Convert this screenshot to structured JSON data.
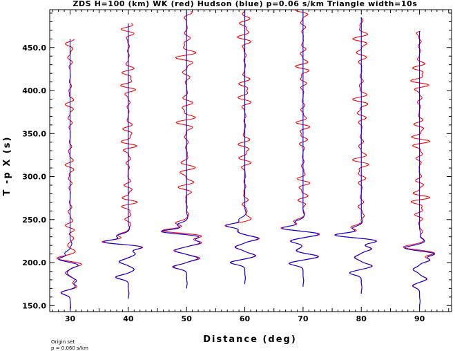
{
  "chart_data": {
    "type": "line",
    "title": "ZDS H=100 (km) WK (red) Hudson (blue) p=0.06 s/km Triangle width=10s",
    "xlabel": "Distance (deg)",
    "ylabel": "T -p X (s)",
    "xlim": [
      26.5,
      95.5
    ],
    "ylim": [
      143,
      494
    ],
    "x_ticks": [
      {
        "value": 30,
        "label": "30"
      },
      {
        "value": 40,
        "label": "40"
      },
      {
        "value": 50,
        "label": "50"
      },
      {
        "value": 60,
        "label": "60"
      },
      {
        "value": 70,
        "label": "70"
      },
      {
        "value": 80,
        "label": "80"
      },
      {
        "value": 90,
        "label": "90"
      }
    ],
    "y_ticks": [
      {
        "value": 150,
        "label": "150.0"
      },
      {
        "value": 200,
        "label": "200.0"
      },
      {
        "value": 250,
        "label": "250.0"
      },
      {
        "value": 300,
        "label": "300.0"
      },
      {
        "value": 350,
        "label": "350.0"
      },
      {
        "value": 400,
        "label": "400.0"
      },
      {
        "value": 450,
        "label": "450.0"
      }
    ],
    "series": [
      {
        "name": "WK",
        "color": "#ff0000"
      },
      {
        "name": "Hudson",
        "color": "#0000ff"
      }
    ],
    "traces": [
      {
        "distance": 30,
        "t_start": 143,
        "t_end": 460,
        "coda_start": 210,
        "coda_amp": 0.7,
        "coda_period": 14,
        "blue": [
          [
            150,
            0.1
          ],
          [
            165,
            -1.6
          ],
          [
            172,
            0.9
          ],
          [
            179,
            1.1
          ],
          [
            188,
            -0.8
          ],
          [
            197,
            1.4
          ],
          [
            204,
            -2.0
          ],
          [
            211,
            -0.9
          ],
          [
            222,
            0.3
          ]
        ],
        "red": [
          [
            150,
            0.1
          ],
          [
            165,
            -1.5
          ],
          [
            172,
            1.2
          ],
          [
            180,
            0.8
          ],
          [
            188,
            -0.5
          ],
          [
            198,
            2.0
          ],
          [
            205,
            -2.3
          ],
          [
            213,
            0.9
          ],
          [
            221,
            -0.6
          ],
          [
            228,
            0.8
          ]
        ]
      },
      {
        "distance": 40,
        "t_start": 158,
        "t_end": 478,
        "coda_start": 232,
        "coda_amp": 1.3,
        "coda_period": 13,
        "blue": [
          [
            164,
            0.1
          ],
          [
            183,
            -2.2
          ],
          [
            192,
            1.0
          ],
          [
            201,
            -1.6
          ],
          [
            210,
            1.2
          ],
          [
            218,
            2.4
          ],
          [
            224,
            -4.3
          ],
          [
            231,
            -2.0
          ],
          [
            240,
            0.2
          ]
        ],
        "red": [
          [
            164,
            0.1
          ],
          [
            183,
            -2.1
          ],
          [
            192,
            1.0
          ],
          [
            201,
            -1.5
          ],
          [
            210,
            1.2
          ],
          [
            218,
            2.6
          ],
          [
            224,
            -4.6
          ],
          [
            232,
            -1.8
          ],
          [
            242,
            0.3
          ]
        ]
      },
      {
        "distance": 50,
        "t_start": 170,
        "t_end": 492,
        "coda_start": 255,
        "coda_amp": 1.6,
        "coda_period": 15,
        "blue": [
          [
            176,
            0.1
          ],
          [
            195,
            -2.4
          ],
          [
            205,
            2.0
          ],
          [
            214,
            -2.0
          ],
          [
            223,
            2.3
          ],
          [
            230,
            2.2
          ],
          [
            236,
            -4.4
          ],
          [
            244,
            -1.6
          ],
          [
            253,
            0.2
          ]
        ],
        "red": [
          [
            176,
            0.1
          ],
          [
            195,
            -2.2
          ],
          [
            205,
            2.3
          ],
          [
            214,
            -2.2
          ],
          [
            223,
            2.6
          ],
          [
            231,
            2.7
          ],
          [
            237,
            -4.3
          ],
          [
            246,
            -1.9
          ],
          [
            256,
            0.4
          ]
        ]
      },
      {
        "distance": 60,
        "t_start": 175,
        "t_end": 494,
        "coda_start": 262,
        "coda_amp": 1.2,
        "coda_period": 14,
        "blue": [
          [
            182,
            0.1
          ],
          [
            200,
            -2.5
          ],
          [
            208,
            1.8
          ],
          [
            218,
            -1.6
          ],
          [
            228,
            2.3
          ],
          [
            236,
            -1.2
          ],
          [
            243,
            -3.2
          ],
          [
            250,
            -1.0
          ],
          [
            258,
            0.2
          ]
        ],
        "red": [
          [
            182,
            0.1
          ],
          [
            200,
            -2.4
          ],
          [
            208,
            1.9
          ],
          [
            218,
            -1.7
          ],
          [
            228,
            2.5
          ],
          [
            236,
            -1.1
          ],
          [
            243,
            -3.4
          ],
          [
            251,
            1.1
          ],
          [
            260,
            0.4
          ]
        ]
      },
      {
        "distance": 70,
        "t_start": 172,
        "t_end": 494,
        "coda_start": 253,
        "coda_amp": 1.1,
        "coda_period": 13,
        "blue": [
          [
            179,
            0.1
          ],
          [
            199,
            -2.4
          ],
          [
            207,
            2.6
          ],
          [
            214,
            -1.2
          ],
          [
            225,
            -2.1
          ],
          [
            233,
            2.7
          ],
          [
            240,
            -3.6
          ],
          [
            247,
            -1.4
          ],
          [
            255,
            0.2
          ]
        ],
        "red": [
          [
            179,
            0.1
          ],
          [
            199,
            -2.3
          ],
          [
            207,
            2.7
          ],
          [
            214,
            -1.1
          ],
          [
            225,
            -2.2
          ],
          [
            233,
            2.9
          ],
          [
            240,
            -3.8
          ],
          [
            248,
            -1.6
          ],
          [
            257,
            0.3
          ]
        ]
      },
      {
        "distance": 80,
        "t_start": 164,
        "t_end": 485,
        "coda_start": 245,
        "coda_amp": 1.3,
        "coda_period": 14,
        "blue": [
          [
            171,
            0.1
          ],
          [
            188,
            -2.0
          ],
          [
            196,
            1.8
          ],
          [
            206,
            -1.1
          ],
          [
            216,
            1.7
          ],
          [
            225,
            2.6
          ],
          [
            232,
            -4.5
          ],
          [
            240,
            -1.5
          ],
          [
            248,
            0.2
          ]
        ],
        "red": [
          [
            171,
            0.1
          ],
          [
            188,
            -2.0
          ],
          [
            196,
            1.9
          ],
          [
            206,
            -1.2
          ],
          [
            216,
            1.8
          ],
          [
            225,
            2.7
          ],
          [
            232,
            -4.6
          ],
          [
            241,
            -1.8
          ],
          [
            250,
            0.4
          ]
        ]
      },
      {
        "distance": 90,
        "t_start": 147,
        "t_end": 469,
        "coda_start": 232,
        "coda_amp": 1.5,
        "coda_period": 13,
        "blue": [
          [
            155,
            0.1
          ],
          [
            173,
            -1.2
          ],
          [
            181,
            1.2
          ],
          [
            192,
            -1.1
          ],
          [
            203,
            1.7
          ],
          [
            210,
            2.6
          ],
          [
            217,
            -2.6
          ],
          [
            225,
            0.9
          ],
          [
            234,
            0.2
          ]
        ],
        "red": [
          [
            155,
            0.1
          ],
          [
            173,
            -1.1
          ],
          [
            181,
            1.3
          ],
          [
            192,
            -1.1
          ],
          [
            203,
            1.8
          ],
          [
            211,
            2.6
          ],
          [
            218,
            -2.8
          ],
          [
            226,
            0.8
          ],
          [
            236,
            0.5
          ]
        ]
      }
    ]
  },
  "notes": [
    "Origin set",
    "p = 0.060 s/km"
  ]
}
